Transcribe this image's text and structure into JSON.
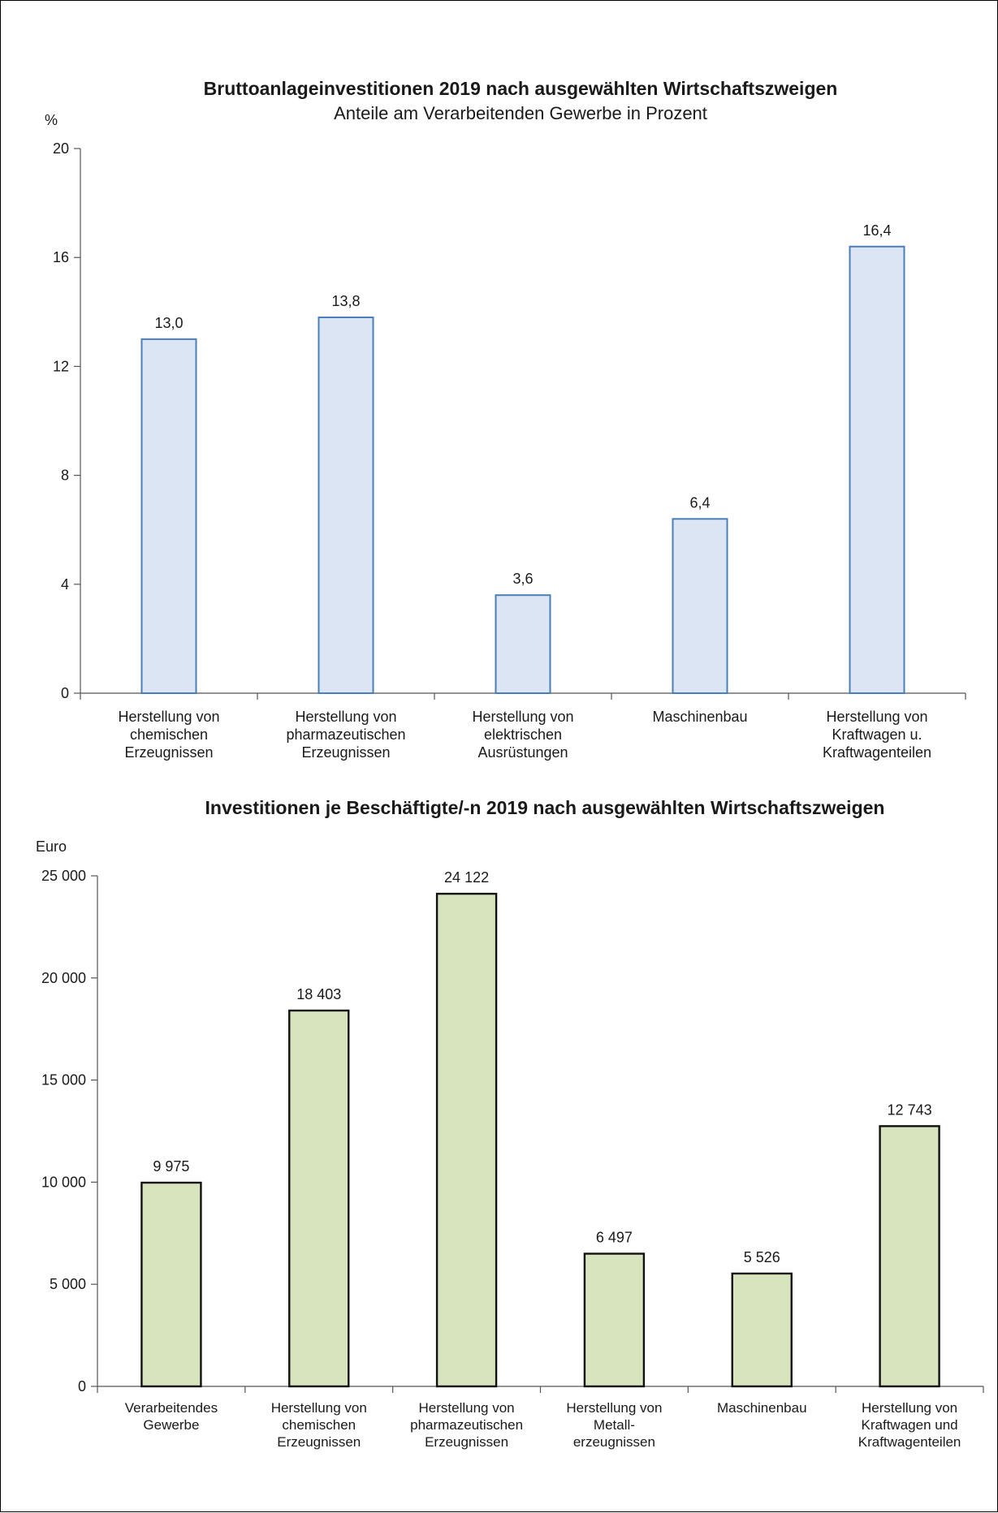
{
  "chart_data": [
    {
      "type": "bar",
      "title": "Bruttoanlageinvestitionen 2019 nach ausgewählten Wirtschaftszweigen",
      "subtitle": "Anteile am Verarbeitenden Gewerbe in Prozent",
      "ylabel": "%",
      "ylim": [
        0,
        20
      ],
      "yticks": [
        "0",
        "4",
        "8",
        "12",
        "16",
        "20"
      ],
      "ytick_values": [
        0,
        4,
        8,
        12,
        16,
        20
      ],
      "categories": [
        [
          "Herstellung von",
          "chemischen",
          "Erzeugnissen"
        ],
        [
          "Herstellung von",
          "pharmazeutischen",
          "Erzeugnissen"
        ],
        [
          "Herstellung von",
          "elektrischen",
          "Ausrüstungen"
        ],
        [
          "Maschinenbau"
        ],
        [
          "Herstellung von",
          "Kraftwagen u.",
          "Kraftwagenteilen"
        ]
      ],
      "values": [
        13.0,
        13.8,
        3.6,
        6.4,
        16.4
      ],
      "value_labels": [
        "13,0",
        "13,8",
        "3,6",
        "6,4",
        "16,4"
      ],
      "bar_fill": "#dbe5f3",
      "bar_stroke": "#4a7ebb",
      "grid": false
    },
    {
      "type": "bar",
      "title": "Investitionen je Beschäftigte/-n 2019 nach ausgewählten Wirtschaftszweigen",
      "ylabel": "Euro",
      "ylim": [
        0,
        25000
      ],
      "yticks": [
        "0",
        "5 000",
        "10 000",
        "15 000",
        "20 000",
        "25 000"
      ],
      "ytick_values": [
        0,
        5000,
        10000,
        15000,
        20000,
        25000
      ],
      "categories": [
        [
          "Verarbeitendes",
          "Gewerbe"
        ],
        [
          "Herstellung von",
          "chemischen",
          "Erzeugnissen"
        ],
        [
          "Herstellung von",
          "pharmazeutischen",
          "Erzeugnissen"
        ],
        [
          "Herstellung von",
          "Metall-",
          "erzeugnissen"
        ],
        [
          "Maschinenbau"
        ],
        [
          "Herstellung von",
          "Kraftwagen und",
          "Kraftwagenteilen"
        ]
      ],
      "values": [
        9975,
        18403,
        24122,
        6497,
        5526,
        12743
      ],
      "value_labels": [
        "9 975",
        "18 403",
        "24 122",
        "6 497",
        "5 526",
        "12 743"
      ],
      "bar_fill": "#d7e4bd",
      "bar_stroke": "#111111",
      "grid": false
    }
  ]
}
